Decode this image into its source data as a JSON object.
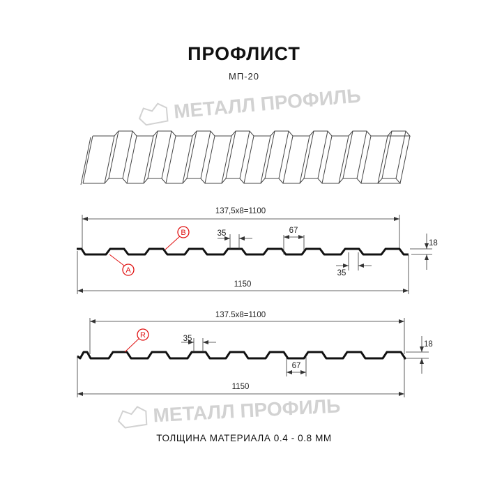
{
  "header": {
    "title": "ПРОФЛИСТ",
    "model": "МП-20"
  },
  "watermark": {
    "text": "МЕТАЛЛ ПРОФИЛЬ",
    "color": "#d2d2d2"
  },
  "profile_1": {
    "pitch_dim": "137,5x8=1100",
    "width_dim": "1150",
    "rib_top_dim": "35",
    "rib_bottom_dim": "35",
    "trough_dim": "67",
    "height_dim": "18",
    "labels": [
      "A",
      "B"
    ]
  },
  "profile_2": {
    "pitch_dim": "137.5x8=1100",
    "width_dim": "1150",
    "rib_top_dim": "35",
    "trough_dim": "67",
    "height_dim": "18",
    "labels": [
      "R"
    ]
  },
  "colors": {
    "profile": "#111111",
    "label": "#e01010",
    "dimension": "#333333"
  },
  "footer": {
    "thickness": "ТОЛЩИНА МАТЕРИАЛА 0.4 - 0.8 ММ"
  }
}
